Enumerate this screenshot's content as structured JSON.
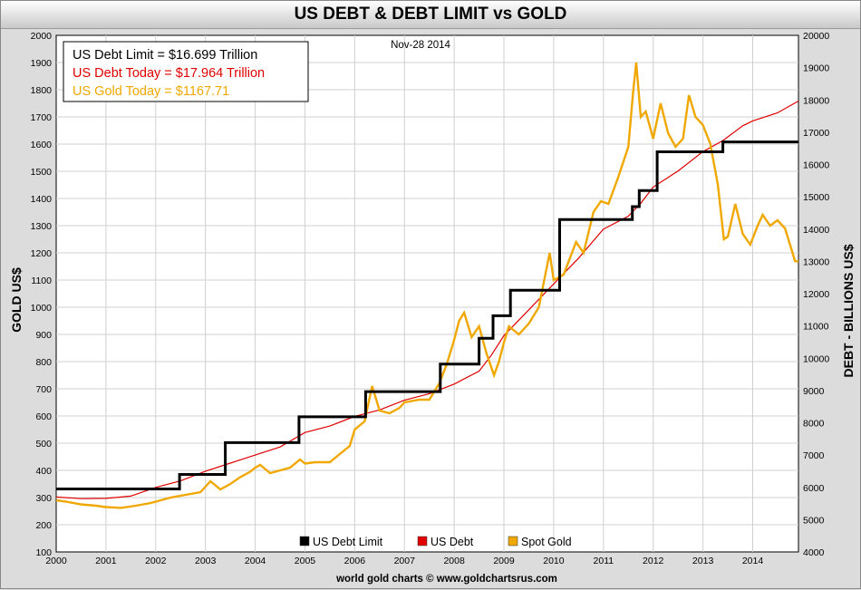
{
  "title": "US DEBT & DEBT LIMIT vs GOLD",
  "date_label": "Nov-28  2014",
  "footer": "world gold charts © www.goldchartsrus.com",
  "info_box": [
    {
      "text": "US Debt Limit    = $16.699 Trillion",
      "color": "#000000"
    },
    {
      "text": "US Debt Today = $17.964 Trillion",
      "color": "#e00000"
    },
    {
      "text": "US Gold Today = $1167.71",
      "color": "#f0a800"
    }
  ],
  "chart_data": {
    "type": "line",
    "title": "US DEBT & DEBT LIMIT vs GOLD",
    "ylabel": "GOLD US$",
    "y2label": "DEBT - BILLIONS US$",
    "xlabel": "",
    "xlim": [
      2000,
      2014.92
    ],
    "ylim": [
      100,
      2000
    ],
    "y2lim": [
      4000,
      20000
    ],
    "x_ticks": [
      "2000",
      "2001",
      "2002",
      "2003",
      "2004",
      "2005",
      "2006",
      "2007",
      "2008",
      "2009",
      "2010",
      "2011",
      "2012",
      "2013",
      "2014"
    ],
    "y_ticks": [
      100,
      200,
      300,
      400,
      500,
      600,
      700,
      800,
      900,
      1000,
      1100,
      1200,
      1300,
      1400,
      1500,
      1600,
      1700,
      1800,
      1900,
      2000
    ],
    "y2_ticks": [
      4000,
      5000,
      6000,
      7000,
      8000,
      9000,
      10000,
      11000,
      12000,
      13000,
      14000,
      15000,
      16000,
      17000,
      18000,
      19000,
      20000
    ],
    "grid": true,
    "legend_position": "bottom-center",
    "series": [
      {
        "name": "US Debt Limit",
        "color": "#000000",
        "axis": "right",
        "step": true,
        "points": [
          [
            2000.0,
            5950
          ],
          [
            2002.48,
            6400
          ],
          [
            2003.4,
            7384
          ],
          [
            2004.88,
            8184
          ],
          [
            2006.22,
            8965
          ],
          [
            2007.72,
            9815
          ],
          [
            2008.5,
            10615
          ],
          [
            2008.78,
            11315
          ],
          [
            2009.13,
            12104
          ],
          [
            2010.12,
            14294
          ],
          [
            2011.58,
            14694
          ],
          [
            2011.72,
            15194
          ],
          [
            2012.08,
            16394
          ],
          [
            2013.4,
            16699
          ],
          [
            2014.92,
            16699
          ]
        ]
      },
      {
        "name": "US Debt",
        "color": "#e00000",
        "axis": "right",
        "points": [
          [
            2000.0,
            5700
          ],
          [
            2000.5,
            5650
          ],
          [
            2001.0,
            5660
          ],
          [
            2001.5,
            5730
          ],
          [
            2002.0,
            6000
          ],
          [
            2002.5,
            6200
          ],
          [
            2003.0,
            6500
          ],
          [
            2003.5,
            6750
          ],
          [
            2004.0,
            7000
          ],
          [
            2004.5,
            7250
          ],
          [
            2005.0,
            7700
          ],
          [
            2005.5,
            7900
          ],
          [
            2006.0,
            8200
          ],
          [
            2006.5,
            8400
          ],
          [
            2007.0,
            8700
          ],
          [
            2007.5,
            8900
          ],
          [
            2008.0,
            9200
          ],
          [
            2008.5,
            9600
          ],
          [
            2008.75,
            10100
          ],
          [
            2009.0,
            10700
          ],
          [
            2009.5,
            11500
          ],
          [
            2010.0,
            12300
          ],
          [
            2010.5,
            13100
          ],
          [
            2011.0,
            14000
          ],
          [
            2011.5,
            14400
          ],
          [
            2011.75,
            14800
          ],
          [
            2012.0,
            15300
          ],
          [
            2012.5,
            15800
          ],
          [
            2013.0,
            16400
          ],
          [
            2013.4,
            16740
          ],
          [
            2013.8,
            17200
          ],
          [
            2014.0,
            17350
          ],
          [
            2014.5,
            17600
          ],
          [
            2014.92,
            17964
          ]
        ]
      },
      {
        "name": "Spot Gold",
        "color": "#f0a800",
        "axis": "left",
        "points": [
          [
            2000.0,
            290
          ],
          [
            2000.2,
            285
          ],
          [
            2000.5,
            275
          ],
          [
            2000.8,
            270
          ],
          [
            2001.0,
            265
          ],
          [
            2001.3,
            262
          ],
          [
            2001.6,
            270
          ],
          [
            2001.9,
            280
          ],
          [
            2002.0,
            285
          ],
          [
            2002.3,
            300
          ],
          [
            2002.6,
            310
          ],
          [
            2002.9,
            320
          ],
          [
            2003.0,
            340
          ],
          [
            2003.1,
            360
          ],
          [
            2003.3,
            330
          ],
          [
            2003.5,
            350
          ],
          [
            2003.7,
            375
          ],
          [
            2003.9,
            395
          ],
          [
            2004.0,
            410
          ],
          [
            2004.1,
            420
          ],
          [
            2004.3,
            390
          ],
          [
            2004.5,
            400
          ],
          [
            2004.7,
            410
          ],
          [
            2004.9,
            440
          ],
          [
            2005.0,
            425
          ],
          [
            2005.2,
            430
          ],
          [
            2005.5,
            430
          ],
          [
            2005.7,
            460
          ],
          [
            2005.9,
            490
          ],
          [
            2006.0,
            550
          ],
          [
            2006.2,
            580
          ],
          [
            2006.35,
            710
          ],
          [
            2006.5,
            620
          ],
          [
            2006.7,
            610
          ],
          [
            2006.9,
            630
          ],
          [
            2007.0,
            650
          ],
          [
            2007.3,
            660
          ],
          [
            2007.5,
            660
          ],
          [
            2007.7,
            720
          ],
          [
            2007.85,
            790
          ],
          [
            2008.0,
            880
          ],
          [
            2008.1,
            950
          ],
          [
            2008.2,
            980
          ],
          [
            2008.35,
            890
          ],
          [
            2008.5,
            930
          ],
          [
            2008.65,
            830
          ],
          [
            2008.8,
            750
          ],
          [
            2008.9,
            800
          ],
          [
            2009.0,
            870
          ],
          [
            2009.1,
            930
          ],
          [
            2009.3,
            900
          ],
          [
            2009.5,
            940
          ],
          [
            2009.7,
            1000
          ],
          [
            2009.92,
            1200
          ],
          [
            2010.0,
            1100
          ],
          [
            2010.2,
            1120
          ],
          [
            2010.45,
            1240
          ],
          [
            2010.6,
            1200
          ],
          [
            2010.8,
            1350
          ],
          [
            2010.95,
            1390
          ],
          [
            2011.1,
            1380
          ],
          [
            2011.3,
            1480
          ],
          [
            2011.5,
            1590
          ],
          [
            2011.6,
            1800
          ],
          [
            2011.66,
            1900
          ],
          [
            2011.75,
            1700
          ],
          [
            2011.85,
            1720
          ],
          [
            2012.0,
            1620
          ],
          [
            2012.15,
            1750
          ],
          [
            2012.3,
            1640
          ],
          [
            2012.45,
            1590
          ],
          [
            2012.6,
            1620
          ],
          [
            2012.72,
            1780
          ],
          [
            2012.85,
            1700
          ],
          [
            2013.0,
            1670
          ],
          [
            2013.15,
            1600
          ],
          [
            2013.3,
            1450
          ],
          [
            2013.42,
            1250
          ],
          [
            2013.5,
            1260
          ],
          [
            2013.65,
            1380
          ],
          [
            2013.8,
            1270
          ],
          [
            2013.95,
            1230
          ],
          [
            2014.1,
            1300
          ],
          [
            2014.2,
            1340
          ],
          [
            2014.35,
            1300
          ],
          [
            2014.5,
            1320
          ],
          [
            2014.65,
            1290
          ],
          [
            2014.75,
            1230
          ],
          [
            2014.85,
            1170
          ],
          [
            2014.92,
            1168
          ]
        ]
      }
    ]
  }
}
